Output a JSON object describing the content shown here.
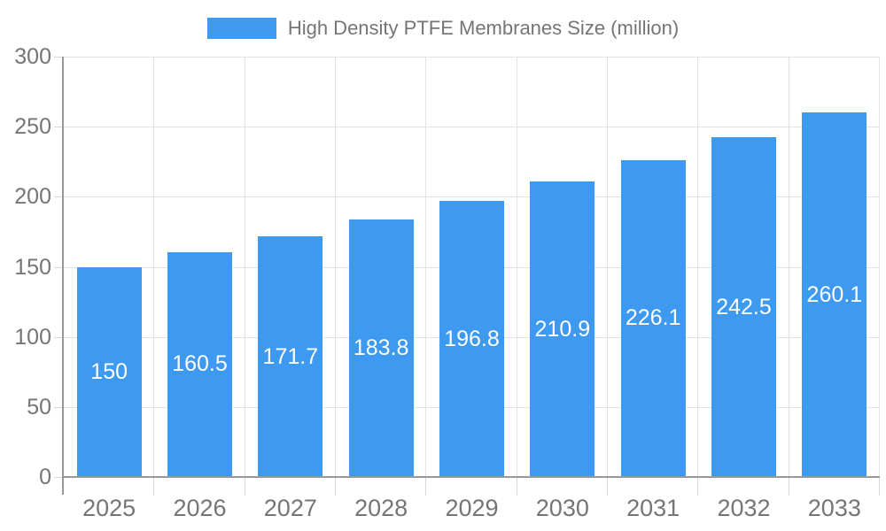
{
  "chart_data": {
    "type": "bar",
    "title": "High Density PTFE Membranes Size (million)",
    "legend": "High Density PTFE Membranes Size (million)",
    "legend_position": "top",
    "categories": [
      "2025",
      "2026",
      "2027",
      "2028",
      "2029",
      "2030",
      "2031",
      "2032",
      "2033"
    ],
    "series": [
      {
        "name": "High Density PTFE Membranes Size (million)",
        "values": [
          150,
          160.5,
          171.7,
          183.8,
          196.8,
          210.9,
          226.1,
          242.5,
          260.1
        ]
      }
    ],
    "value_labels": [
      "150",
      "160.5",
      "171.7",
      "183.8",
      "196.8",
      "210.9",
      "226.1",
      "242.5",
      "260.1"
    ],
    "xlabel": "",
    "ylabel": "",
    "ylim": [
      0,
      300
    ],
    "y_ticks": [
      0,
      50,
      100,
      150,
      200,
      250,
      300
    ],
    "grid": true,
    "colors": {
      "bar": "#3D9AF0",
      "grid": "#E3E3E3",
      "axis": "#999999",
      "tick": "#D9D9D9",
      "axis_text": "#757575",
      "legend_text": "#757575",
      "bar_label_text": "#FFFFFF",
      "background": "#FFFFFF"
    }
  }
}
